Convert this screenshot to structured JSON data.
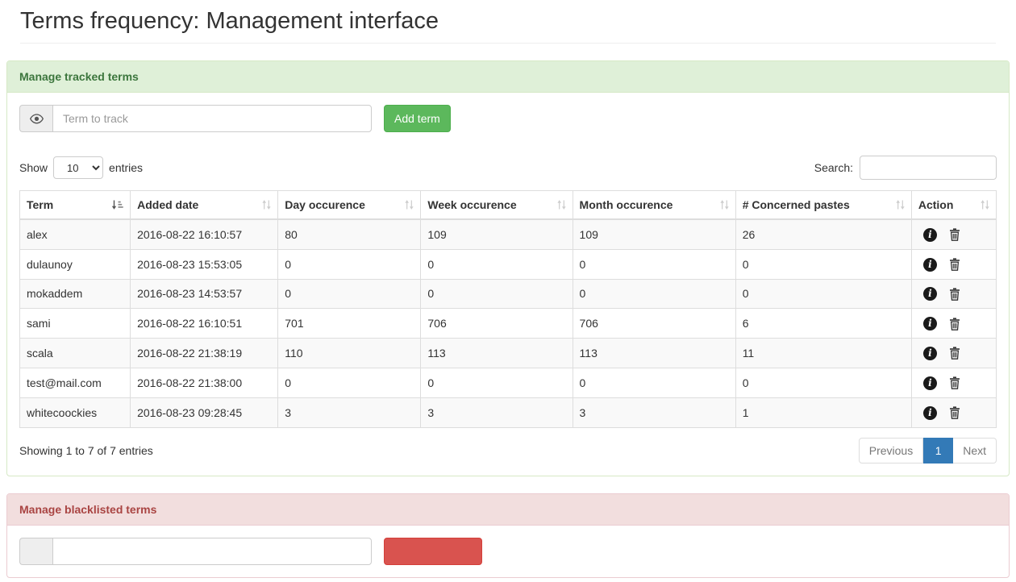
{
  "page": {
    "title": "Terms frequency: Management interface"
  },
  "colors": {
    "success_bg": "#dff0d8",
    "success_text": "#3c763d",
    "success_border": "#d6e9c6",
    "danger_bg": "#f2dede",
    "danger_text": "#a94442",
    "danger_border": "#ebccd1",
    "btn_success": "#5cb85c",
    "btn_danger": "#d9534f",
    "pagination_active": "#337ab7"
  },
  "tracked_panel": {
    "heading": "Manage tracked terms",
    "term_input_placeholder": "Term to track",
    "add_button_label": "Add term",
    "show_label": "Show",
    "entries_label": "entries",
    "page_length": "10",
    "search_label": "Search:",
    "search_value": "",
    "table": {
      "columns": [
        "Term",
        "Added date",
        "Day occurence",
        "Week occurence",
        "Month occurence",
        "# Concerned pastes",
        "Action"
      ],
      "sorted_column": "Term",
      "sorted_direction": "asc",
      "rows": [
        {
          "term": "alex",
          "added_date": "2016-08-22 16:10:57",
          "day": "80",
          "week": "109",
          "month": "109",
          "pastes": "26"
        },
        {
          "term": "dulaunoy",
          "added_date": "2016-08-23 15:53:05",
          "day": "0",
          "week": "0",
          "month": "0",
          "pastes": "0"
        },
        {
          "term": "mokaddem",
          "added_date": "2016-08-23 14:53:57",
          "day": "0",
          "week": "0",
          "month": "0",
          "pastes": "0"
        },
        {
          "term": "sami",
          "added_date": "2016-08-22 16:10:51",
          "day": "701",
          "week": "706",
          "month": "706",
          "pastes": "6"
        },
        {
          "term": "scala",
          "added_date": "2016-08-22 21:38:19",
          "day": "110",
          "week": "113",
          "month": "113",
          "pastes": "11"
        },
        {
          "term": "test@mail.com",
          "added_date": "2016-08-22 21:38:00",
          "day": "0",
          "week": "0",
          "month": "0",
          "pastes": "0"
        },
        {
          "term": "whitecoockies",
          "added_date": "2016-08-23 09:28:45",
          "day": "3",
          "week": "3",
          "month": "3",
          "pastes": "1"
        }
      ],
      "action_icons": [
        "info-icon",
        "trash-icon"
      ]
    },
    "info_text": "Showing 1 to 7 of 7 entries",
    "pagination": {
      "previous_label": "Previous",
      "current_page": "1",
      "next_label": "Next"
    }
  },
  "blacklist_panel": {
    "heading": "Manage blacklisted terms"
  }
}
